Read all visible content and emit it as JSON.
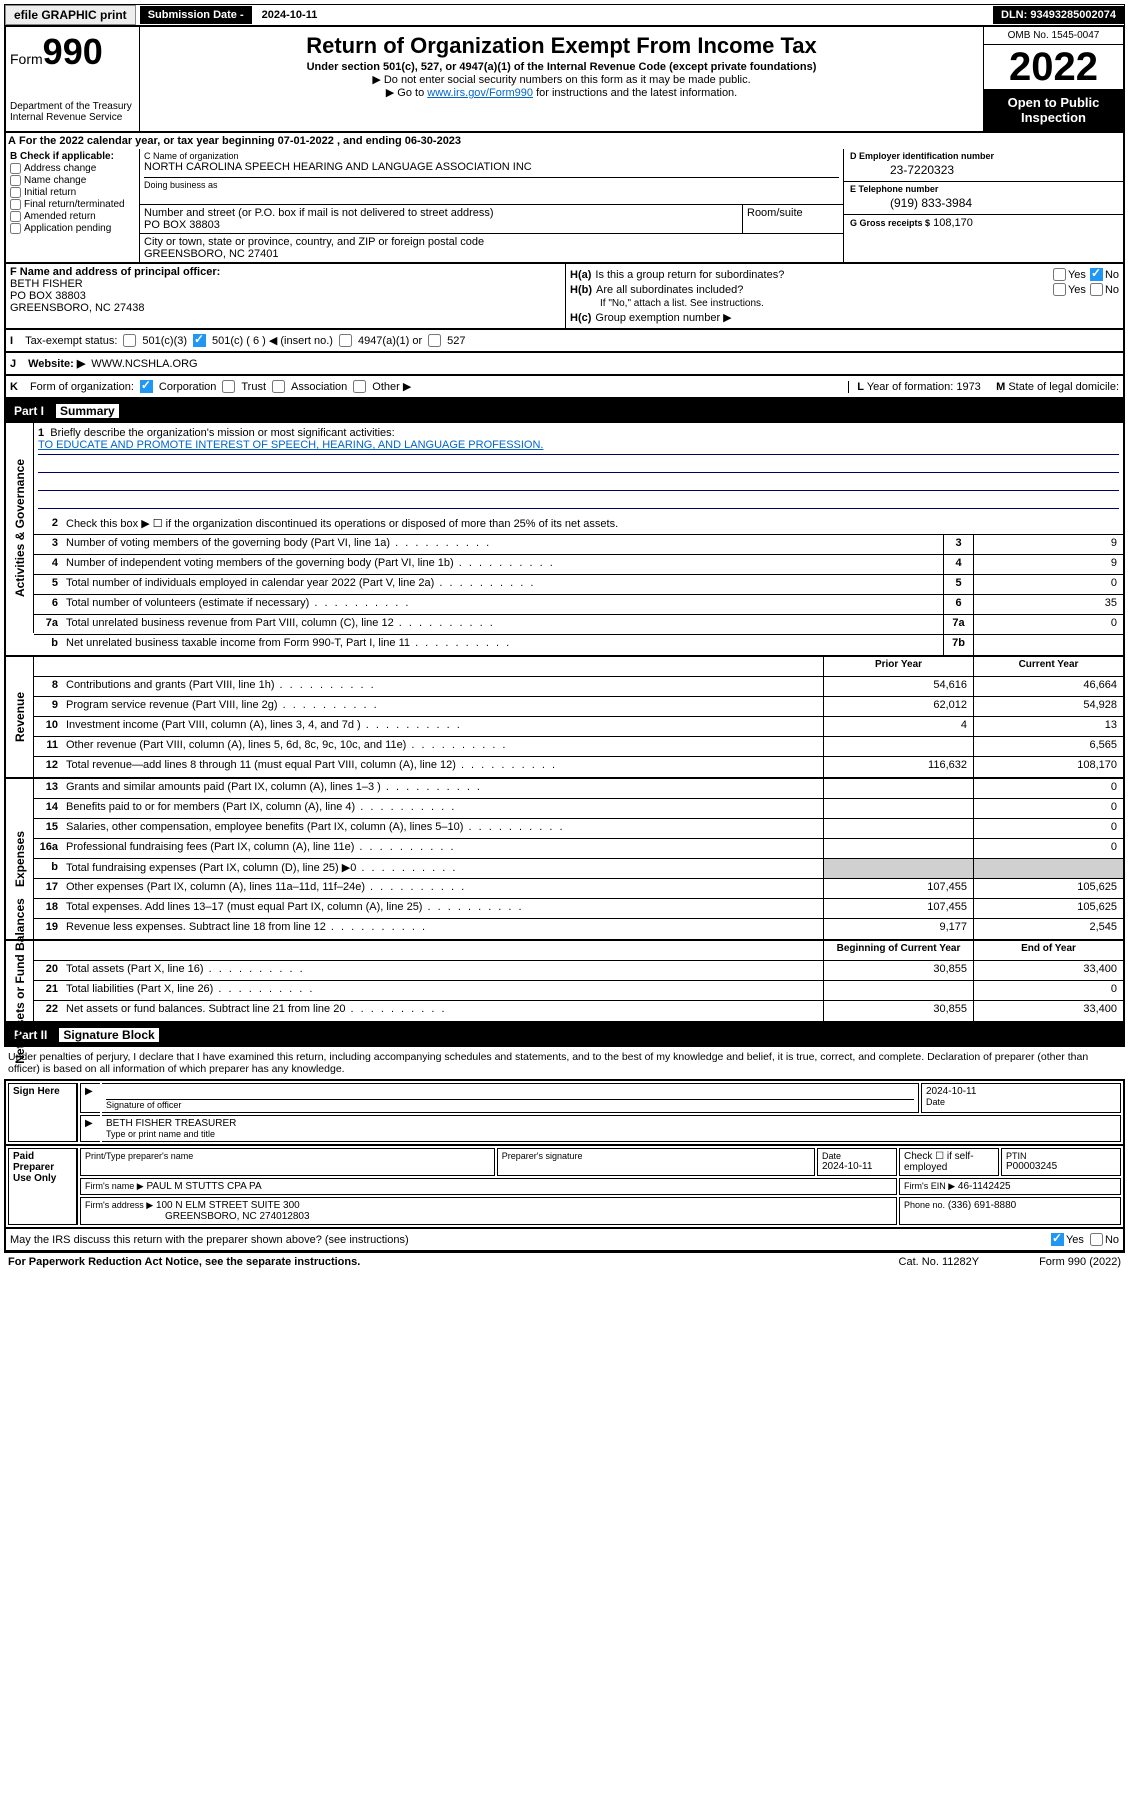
{
  "topbar": {
    "efile": "efile GRAPHIC print",
    "sub_label": "Submission Date - ",
    "sub_date": "2024-10-11",
    "dln": "DLN: 93493285002074"
  },
  "header": {
    "form_prefix": "Form",
    "form_num": "990",
    "dept": "Department of the Treasury",
    "irs": "Internal Revenue Service",
    "title": "Return of Organization Exempt From Income Tax",
    "sub1": "Under section 501(c), 527, or 4947(a)(1) of the Internal Revenue Code (except private foundations)",
    "sub2": "Do not enter social security numbers on this form as it may be made public.",
    "sub3_pre": "Go to ",
    "sub3_link": "www.irs.gov/Form990",
    "sub3_post": " for instructions and the latest information.",
    "omb": "OMB No. 1545-0047",
    "year": "2022",
    "open": "Open to Public Inspection"
  },
  "rowA": "For the 2022 calendar year, or tax year beginning 07-01-2022   , and ending 06-30-2023",
  "B": {
    "label": "Check if applicable:",
    "opts": [
      "Address change",
      "Name change",
      "Initial return",
      "Final return/terminated",
      "Amended return",
      "Application pending"
    ]
  },
  "C": {
    "name_hint": "C Name of organization",
    "name": "NORTH CAROLINA SPEECH HEARING AND LANGUAGE ASSOCIATION INC",
    "dba_hint": "Doing business as",
    "addr_hint": "Number and street (or P.O. box if mail is not delivered to street address)",
    "room_hint": "Room/suite",
    "addr": "PO BOX 38803",
    "city_hint": "City or town, state or province, country, and ZIP or foreign postal code",
    "city": "GREENSBORO, NC  27401"
  },
  "D": {
    "label": "D Employer identification number",
    "val": "23-7220323"
  },
  "E": {
    "label": "E Telephone number",
    "val": "(919) 833-3984"
  },
  "G": {
    "label": "G Gross receipts $",
    "val": "108,170"
  },
  "F": {
    "label": "F  Name and address of principal officer:",
    "name": "BETH FISHER",
    "addr": "PO BOX 38803",
    "city": "GREENSBORO, NC  27438"
  },
  "H": {
    "a": "Is this a group return for subordinates?",
    "b": "Are all subordinates included?",
    "b_note": "If \"No,\" attach a list. See instructions.",
    "c": "Group exemption number ▶",
    "yes": "Yes",
    "no": "No"
  },
  "I": {
    "label": "Tax-exempt status:",
    "o1": "501(c)(3)",
    "o2": "501(c) ( 6 ) ◀ (insert no.)",
    "o3": "4947(a)(1) or",
    "o4": "527"
  },
  "J": {
    "label": "Website: ▶",
    "val": "WWW.NCSHLA.ORG"
  },
  "K": {
    "label": "Form of organization:",
    "o1": "Corporation",
    "o2": "Trust",
    "o3": "Association",
    "o4": "Other ▶"
  },
  "L": {
    "label": "Year of formation:",
    "val": "1973"
  },
  "M": {
    "label": "State of legal domicile:"
  },
  "partI": {
    "num": "Part I",
    "title": "Summary"
  },
  "q1": {
    "label": "Briefly describe the organization's mission or most significant activities:",
    "val": "TO EDUCATE AND PROMOTE INTEREST OF SPEECH, HEARING, AND LANGUAGE PROFESSION."
  },
  "q2": "Check this box ▶ ☐  if the organization discontinued its operations or disposed of more than 25% of its net assets.",
  "sections": {
    "gov": "Activities & Governance",
    "rev": "Revenue",
    "exp": "Expenses",
    "net": "Net Assets or Fund Balances"
  },
  "lines_gov": [
    {
      "n": "3",
      "t": "Number of voting members of the governing body (Part VI, line 1a)",
      "box": "3",
      "v": "9"
    },
    {
      "n": "4",
      "t": "Number of independent voting members of the governing body (Part VI, line 1b)",
      "box": "4",
      "v": "9"
    },
    {
      "n": "5",
      "t": "Total number of individuals employed in calendar year 2022 (Part V, line 2a)",
      "box": "5",
      "v": "0"
    },
    {
      "n": "6",
      "t": "Total number of volunteers (estimate if necessary)",
      "box": "6",
      "v": "35"
    },
    {
      "n": "7a",
      "t": "Total unrelated business revenue from Part VIII, column (C), line 12",
      "box": "7a",
      "v": "0"
    },
    {
      "n": "b",
      "t": "Net unrelated business taxable income from Form 990-T, Part I, line 11",
      "box": "7b",
      "v": ""
    }
  ],
  "hdr_py": "Prior Year",
  "hdr_cy": "Current Year",
  "lines_rev": [
    {
      "n": "8",
      "t": "Contributions and grants (Part VIII, line 1h)",
      "py": "54,616",
      "cy": "46,664"
    },
    {
      "n": "9",
      "t": "Program service revenue (Part VIII, line 2g)",
      "py": "62,012",
      "cy": "54,928"
    },
    {
      "n": "10",
      "t": "Investment income (Part VIII, column (A), lines 3, 4, and 7d )",
      "py": "4",
      "cy": "13"
    },
    {
      "n": "11",
      "t": "Other revenue (Part VIII, column (A), lines 5, 6d, 8c, 9c, 10c, and 11e)",
      "py": "",
      "cy": "6,565"
    },
    {
      "n": "12",
      "t": "Total revenue—add lines 8 through 11 (must equal Part VIII, column (A), line 12)",
      "py": "116,632",
      "cy": "108,170"
    }
  ],
  "lines_exp": [
    {
      "n": "13",
      "t": "Grants and similar amounts paid (Part IX, column (A), lines 1–3 )",
      "py": "",
      "cy": "0"
    },
    {
      "n": "14",
      "t": "Benefits paid to or for members (Part IX, column (A), line 4)",
      "py": "",
      "cy": "0"
    },
    {
      "n": "15",
      "t": "Salaries, other compensation, employee benefits (Part IX, column (A), lines 5–10)",
      "py": "",
      "cy": "0"
    },
    {
      "n": "16a",
      "t": "Professional fundraising fees (Part IX, column (A), line 11e)",
      "py": "",
      "cy": "0"
    },
    {
      "n": "b",
      "t": "Total fundraising expenses (Part IX, column (D), line 25) ▶0",
      "py": "gray",
      "cy": "gray"
    },
    {
      "n": "17",
      "t": "Other expenses (Part IX, column (A), lines 11a–11d, 11f–24e)",
      "py": "107,455",
      "cy": "105,625"
    },
    {
      "n": "18",
      "t": "Total expenses. Add lines 13–17 (must equal Part IX, column (A), line 25)",
      "py": "107,455",
      "cy": "105,625"
    },
    {
      "n": "19",
      "t": "Revenue less expenses. Subtract line 18 from line 12",
      "py": "9,177",
      "cy": "2,545"
    }
  ],
  "hdr_boy": "Beginning of Current Year",
  "hdr_eoy": "End of Year",
  "lines_net": [
    {
      "n": "20",
      "t": "Total assets (Part X, line 16)",
      "py": "30,855",
      "cy": "33,400"
    },
    {
      "n": "21",
      "t": "Total liabilities (Part X, line 26)",
      "py": "",
      "cy": "0"
    },
    {
      "n": "22",
      "t": "Net assets or fund balances. Subtract line 21 from line 20",
      "py": "30,855",
      "cy": "33,400"
    }
  ],
  "partII": {
    "num": "Part II",
    "title": "Signature Block"
  },
  "sig": {
    "decl": "Under penalties of perjury, I declare that I have examined this return, including accompanying schedules and statements, and to the best of my knowledge and belief, it is true, correct, and complete. Declaration of preparer (other than officer) is based on all information of which preparer has any knowledge.",
    "sign_here": "Sign Here",
    "sig_officer": "Signature of officer",
    "date": "Date",
    "date_val": "2024-10-11",
    "officer": "BETH FISHER  TREASURER",
    "type_name": "Type or print name and title",
    "paid": "Paid Preparer Use Only",
    "prep_name_h": "Print/Type preparer's name",
    "prep_sig_h": "Preparer's signature",
    "prep_date": "2024-10-11",
    "check_if": "Check ☐ if self-employed",
    "ptin_h": "PTIN",
    "ptin": "P00003245",
    "firm_name_h": "Firm's name   ▶",
    "firm_name": "PAUL M STUTTS CPA PA",
    "firm_ein_h": "Firm's EIN ▶",
    "firm_ein": "46-1142425",
    "firm_addr_h": "Firm's address ▶",
    "firm_addr": "100 N ELM STREET SUITE 300",
    "firm_city": "GREENSBORO, NC  274012803",
    "phone_h": "Phone no.",
    "phone": "(336) 691-8880",
    "may_irs": "May the IRS discuss this return with the preparer shown above? (see instructions)",
    "yes": "Yes",
    "no": "No"
  },
  "footer": {
    "l": "For Paperwork Reduction Act Notice, see the separate instructions.",
    "c": "Cat. No. 11282Y",
    "r": "Form 990 (2022)"
  }
}
